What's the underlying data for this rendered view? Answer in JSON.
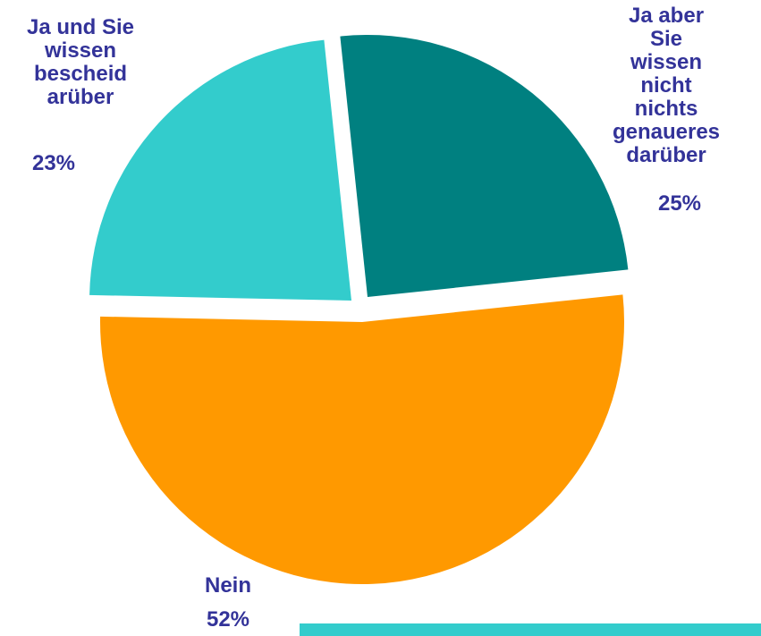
{
  "chart_data": {
    "type": "pie",
    "categories": [
      "Ja aber Sie\nwissen nicht\nnichts\ngenaueres\ndarüber",
      "Nein",
      "Ja und Sie\nwissen\nbescheid\narüber"
    ],
    "values": [
      25,
      52,
      23
    ],
    "value_labels": [
      "25%",
      "52%",
      "23%"
    ],
    "colors": [
      "#008080",
      "#ff9900",
      "#33cccc"
    ]
  }
}
